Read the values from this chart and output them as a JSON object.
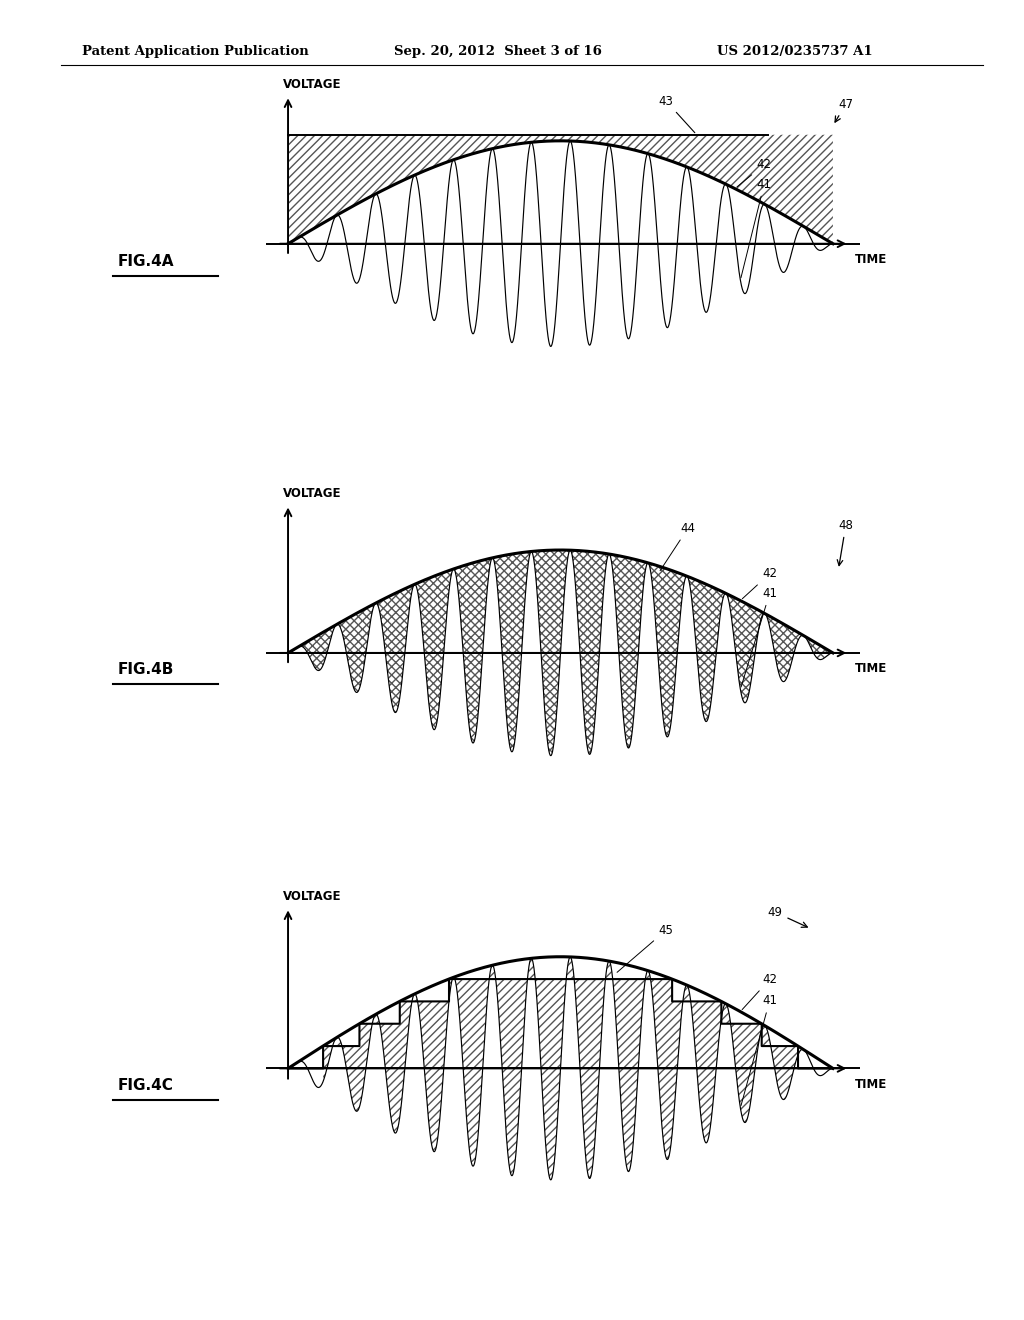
{
  "header_left": "Patent Application Publication",
  "header_center": "Sep. 20, 2012  Sheet 3 of 16",
  "header_right": "US 2012/0235737 A1",
  "background_color": "#ffffff",
  "fig_labels": [
    "FIG.4A",
    "FIG.4B",
    "FIG.4C"
  ],
  "voltage_label": "VOLTAGE",
  "time_label": "TIME",
  "flat_level_4a": 0.72,
  "carrier_cycles": 14,
  "envelope_amplitude": 0.68,
  "stair_steps": 5
}
